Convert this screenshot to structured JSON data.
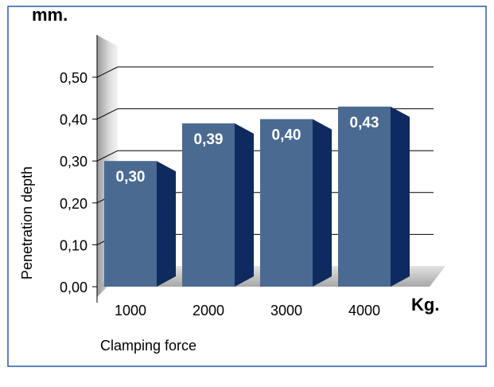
{
  "chart_data": {
    "type": "bar",
    "unit_y": "mm.",
    "unit_x": "Kg.",
    "ylabel": "Penetration depth",
    "xlabel": "Clamping force",
    "categories": [
      "1000",
      "2000",
      "3000",
      "4000"
    ],
    "values": [
      0.3,
      0.39,
      0.4,
      0.43
    ],
    "data_labels": [
      "0,30",
      "0,39",
      "0,40",
      "0,43"
    ],
    "yticks": [
      "0,00",
      "0,10",
      "0,20",
      "0,30",
      "0,40",
      "0,50"
    ],
    "ylim": [
      0,
      0.5
    ],
    "grid": true,
    "colors": {
      "bar_front": "#4a6a92",
      "bar_side": "#0e2a5e",
      "bar_top": "#6d8bb0",
      "frame": "#2a5aa6",
      "grid": "#000000",
      "wall": "#d0d0d0",
      "floor": "#cfcfcf",
      "label_text": "#ffffff"
    }
  }
}
